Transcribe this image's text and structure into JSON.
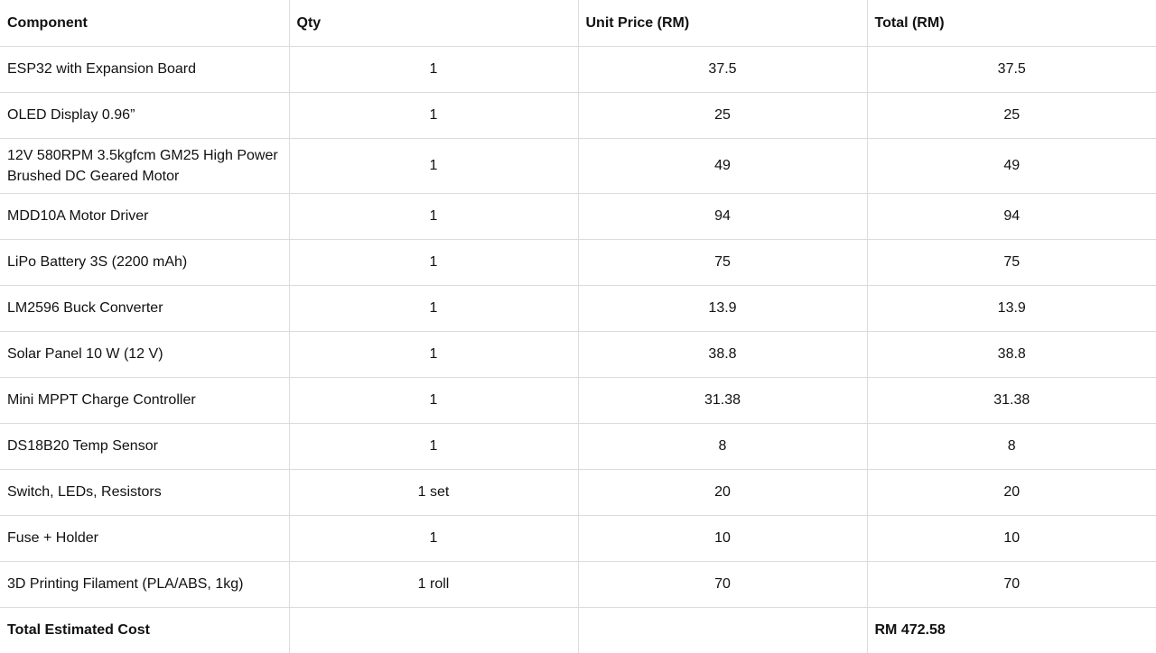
{
  "table": {
    "headers": [
      "Component",
      "Qty",
      "Unit Price (RM)",
      "Total (RM)"
    ],
    "rows": [
      [
        "ESP32 with Expansion Board",
        "1",
        "37.5",
        "37.5"
      ],
      [
        "OLED Display 0.96”",
        "1",
        "25",
        "25"
      ],
      [
        "12V 580RPM 3.5kgfcm GM25 High Power Brushed DC Geared Motor",
        "1",
        "49",
        "49"
      ],
      [
        "MDD10A Motor Driver",
        "1",
        "94",
        "94"
      ],
      [
        "LiPo Battery 3S (2200 mAh)",
        "1",
        "75",
        "75"
      ],
      [
        "LM2596 Buck Converter",
        "1",
        "13.9",
        "13.9"
      ],
      [
        "Solar Panel 10 W (12 V)",
        "1",
        "38.8",
        "38.8"
      ],
      [
        "Mini MPPT Charge Controller",
        "1",
        "31.38",
        "31.38"
      ],
      [
        "DS18B20 Temp Sensor",
        "1",
        "8",
        "8"
      ],
      [
        "Switch, LEDs, Resistors",
        "1 set",
        "20",
        "20"
      ],
      [
        "Fuse + Holder",
        "1",
        "10",
        "10"
      ],
      [
        "3D Printing Filament (PLA/ABS, 1kg)",
        "1 roll",
        "70",
        "70"
      ]
    ],
    "footer": [
      "Total Estimated Cost",
      "",
      "",
      "RM 472.58"
    ]
  }
}
